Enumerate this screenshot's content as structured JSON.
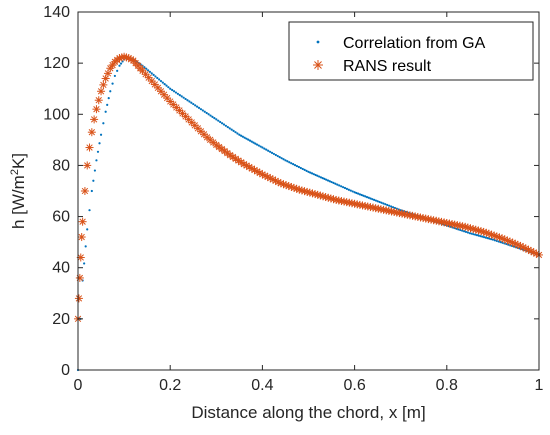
{
  "chart_data": {
    "type": "scatter",
    "xlabel": "Distance along the chord, x [m]",
    "ylabel": {
      "main": "h [W/m",
      "sup": "2",
      "tail": "K]"
    },
    "xlim": [
      0,
      1
    ],
    "ylim": [
      0,
      140
    ],
    "xticks": [
      "0",
      "0.2",
      "0.4",
      "0.6",
      "0.8",
      "1"
    ],
    "yticks": [
      "0",
      "20",
      "40",
      "60",
      "80",
      "100",
      "120",
      "140"
    ],
    "grid": false,
    "legend_position": "top-right",
    "series": [
      {
        "name": "Correlation from GA",
        "marker": "dot",
        "color": "#0072BD",
        "x": [
          0,
          0.005,
          0.01,
          0.02,
          0.03,
          0.04,
          0.05,
          0.06,
          0.07,
          0.08,
          0.09,
          0.1,
          0.11,
          0.12,
          0.14,
          0.16,
          0.2,
          0.25,
          0.3,
          0.35,
          0.4,
          0.45,
          0.5,
          0.55,
          0.6,
          0.65,
          0.7,
          0.75,
          0.8,
          0.85,
          0.9,
          0.95,
          1.0
        ],
        "y": [
          0,
          20,
          35,
          55,
          70,
          82,
          92,
          101,
          109,
          115,
          119,
          121.5,
          122,
          121.5,
          119,
          116,
          110,
          104,
          98,
          92,
          87,
          82,
          77.5,
          73.5,
          69.5,
          66,
          62.5,
          59.5,
          56.5,
          53.5,
          51,
          48,
          45
        ]
      },
      {
        "name": "RANS result",
        "marker": "asterisk",
        "color": "#D95319",
        "x": [
          0,
          0.002,
          0.004,
          0.006,
          0.008,
          0.01,
          0.015,
          0.02,
          0.025,
          0.03,
          0.035,
          0.04,
          0.05,
          0.06,
          0.07,
          0.08,
          0.09,
          0.1,
          0.11,
          0.12,
          0.13,
          0.14,
          0.16,
          0.18,
          0.2,
          0.22,
          0.24,
          0.26,
          0.28,
          0.3,
          0.33,
          0.36,
          0.4,
          0.44,
          0.48,
          0.52,
          0.56,
          0.6,
          0.64,
          0.68,
          0.72,
          0.76,
          0.8,
          0.84,
          0.88,
          0.92,
          0.96,
          1.0
        ],
        "y": [
          20,
          28,
          36,
          44,
          52,
          58,
          70,
          80,
          87,
          93,
          98,
          102,
          109,
          114,
          118,
          120.5,
          122,
          122.5,
          122,
          121,
          119,
          117,
          113,
          109,
          105,
          101.5,
          98,
          94.5,
          91,
          88,
          84,
          80.5,
          76.5,
          73,
          70.5,
          68.5,
          66.5,
          65,
          63.5,
          62,
          60.5,
          59,
          57.5,
          56,
          54,
          51.5,
          48.5,
          45
        ]
      }
    ]
  }
}
